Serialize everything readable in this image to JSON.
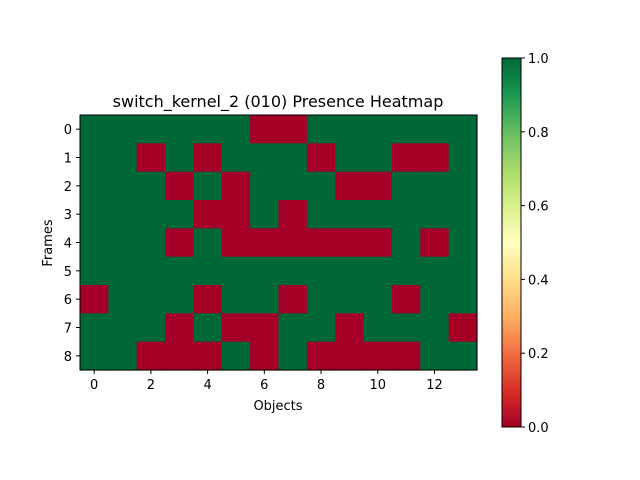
{
  "chart_data": {
    "type": "heatmap",
    "title": "switch_kernel_2 (010) Presence Heatmap",
    "xlabel": "Objects",
    "ylabel": "Frames",
    "x_ticks": [
      "0",
      "2",
      "4",
      "6",
      "8",
      "10",
      "12"
    ],
    "y_ticks": [
      "0",
      "1",
      "2",
      "3",
      "4",
      "5",
      "6",
      "7",
      "8"
    ],
    "n_cols": 14,
    "n_rows": 9,
    "values": [
      [
        1,
        1,
        1,
        1,
        1,
        1,
        0,
        0,
        1,
        1,
        1,
        1,
        1,
        1
      ],
      [
        1,
        1,
        0,
        1,
        0,
        1,
        1,
        1,
        0,
        1,
        1,
        0,
        0,
        1
      ],
      [
        1,
        1,
        1,
        0,
        1,
        0,
        1,
        1,
        1,
        0,
        0,
        1,
        1,
        1
      ],
      [
        1,
        1,
        1,
        1,
        0,
        0,
        1,
        0,
        1,
        1,
        1,
        1,
        1,
        1
      ],
      [
        1,
        1,
        1,
        0,
        1,
        0,
        0,
        0,
        0,
        0,
        0,
        1,
        0,
        1
      ],
      [
        1,
        1,
        1,
        1,
        1,
        1,
        1,
        1,
        1,
        1,
        1,
        1,
        1,
        1
      ],
      [
        0,
        1,
        1,
        1,
        0,
        1,
        1,
        0,
        1,
        1,
        1,
        0,
        1,
        1
      ],
      [
        1,
        1,
        1,
        0,
        1,
        0,
        0,
        1,
        1,
        0,
        1,
        1,
        1,
        0
      ],
      [
        1,
        1,
        0,
        0,
        0,
        1,
        0,
        1,
        0,
        0,
        0,
        0,
        1,
        1
      ]
    ],
    "colorbar": {
      "ticks": [
        "0.0",
        "0.2",
        "0.4",
        "0.6",
        "0.8",
        "1.0"
      ],
      "range": [
        0,
        1
      ],
      "colormap": "RdYlGn",
      "low_color": "#a50026",
      "high_color": "#006837"
    }
  }
}
